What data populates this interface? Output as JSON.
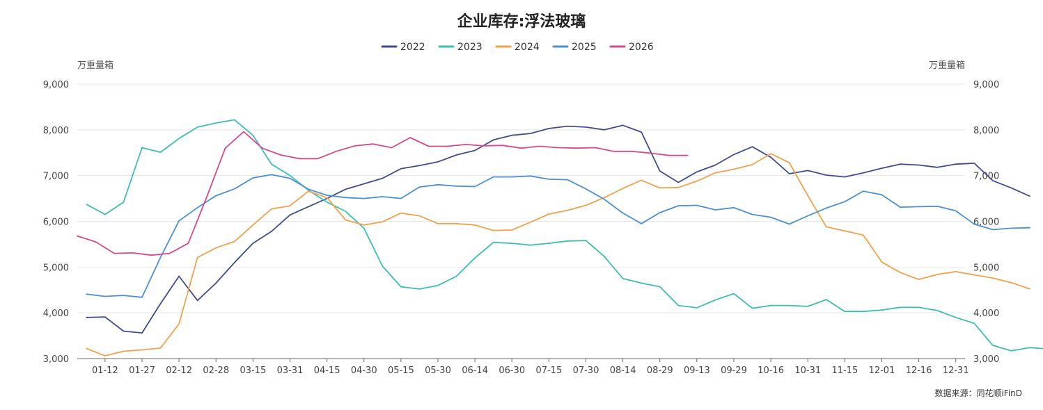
{
  "chart_data": {
    "type": "line",
    "title": "企业库存:浮法玻璃",
    "y_unit_left": "万重量箱",
    "y_unit_right": "万重量箱",
    "ylim": [
      3000,
      9000
    ],
    "y_ticks": [
      3000,
      4000,
      5000,
      6000,
      7000,
      8000,
      9000
    ],
    "y_tick_labels": [
      "3,000",
      "4,000",
      "5,000",
      "6,000",
      "7,000",
      "8,000",
      "9,000"
    ],
    "x_tick_labels": [
      "01-12",
      "01-27",
      "02-12",
      "02-28",
      "03-15",
      "03-31",
      "04-15",
      "04-30",
      "05-15",
      "05-30",
      "06-14",
      "06-30",
      "07-15",
      "07-30",
      "08-14",
      "08-29",
      "09-13",
      "09-29",
      "10-16",
      "10-31",
      "11-15",
      "12-01",
      "12-16",
      "12-31"
    ],
    "x_range": [
      0,
      48
    ],
    "grid": true,
    "legend_position": "top-center",
    "source": "数据来源：同花顺iFinD",
    "series": [
      {
        "name": "2022",
        "color": "#3f4b8c",
        "start": 0.5,
        "values": [
          3900,
          3910,
          3600,
          3560,
          4200,
          4800,
          4270,
          4650,
          5100,
          5520,
          5780,
          6140,
          6320,
          6500,
          6700,
          6820,
          6940,
          7150,
          7220,
          7300,
          7450,
          7550,
          7780,
          7880,
          7920,
          8030,
          8080,
          8060,
          8000,
          8100,
          7950,
          7100,
          6850,
          7080,
          7230,
          7460,
          7630,
          7400,
          7040,
          7110,
          7010,
          6970,
          7060,
          7160,
          7250,
          7230,
          7180,
          7250,
          7270,
          6890,
          6730,
          6550
        ]
      },
      {
        "name": "2023",
        "color": "#3dbdb0",
        "start": 0.5,
        "values": [
          6370,
          6150,
          6420,
          7610,
          7510,
          7810,
          8060,
          8150,
          8220,
          7880,
          7250,
          7000,
          6680,
          6420,
          6220,
          5850,
          5020,
          4570,
          4520,
          4600,
          4800,
          5200,
          5540,
          5520,
          5480,
          5520,
          5570,
          5580,
          5230,
          4750,
          4650,
          4570,
          4160,
          4110,
          4280,
          4420,
          4100,
          4160,
          4160,
          4140,
          4290,
          4030,
          4030,
          4060,
          4120,
          4120,
          4050,
          3900,
          3770,
          3290,
          3170,
          3240,
          3210
        ]
      },
      {
        "name": "2024",
        "color": "#f0a04b",
        "start": 0.5,
        "values": [
          3220,
          3060,
          3160,
          3190,
          3230,
          3760,
          5210,
          5420,
          5560,
          5920,
          6270,
          6340,
          6660,
          6520,
          6030,
          5920,
          5990,
          6180,
          6120,
          5950,
          5950,
          5920,
          5800,
          5810,
          5980,
          6160,
          6240,
          6350,
          6520,
          6720,
          6900,
          6730,
          6740,
          6880,
          7060,
          7140,
          7240,
          7480,
          7280,
          6560,
          5880,
          5790,
          5700,
          5110,
          4880,
          4730,
          4840,
          4900,
          4830,
          4760,
          4660,
          4520
        ]
      },
      {
        "name": "2025",
        "color": "#4a8fd4",
        "start": 0.5,
        "values": [
          4410,
          4360,
          4380,
          4340,
          5210,
          6010,
          6300,
          6560,
          6710,
          6950,
          7020,
          6940,
          6700,
          6570,
          6520,
          6500,
          6540,
          6500,
          6750,
          6800,
          6770,
          6760,
          6970,
          6970,
          6990,
          6920,
          6910,
          6710,
          6480,
          6180,
          5950,
          6190,
          6340,
          6350,
          6250,
          6300,
          6150,
          6090,
          5940,
          6120,
          6290,
          6430,
          6660,
          6580,
          6310,
          6320,
          6330,
          6230,
          5940,
          5820,
          5850,
          5860
        ]
      },
      {
        "name": "2026",
        "color": "#d6478b",
        "start": 0,
        "values": [
          5680,
          5550,
          5300,
          5310,
          5260,
          5300,
          5520,
          6530,
          7600,
          7960,
          7600,
          7450,
          7370,
          7370,
          7530,
          7650,
          7690,
          7610,
          7830,
          7640,
          7640,
          7680,
          7650,
          7660,
          7600,
          7640,
          7610,
          7600,
          7610,
          7530,
          7530,
          7490,
          7440,
          7440
        ]
      }
    ]
  }
}
